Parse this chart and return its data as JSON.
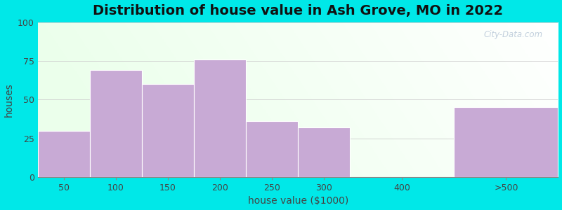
{
  "title": "Distribution of house value in Ash Grove, MO in 2022",
  "xlabel": "house value ($1000)",
  "ylabel": "houses",
  "bar_labels": [
    "50",
    "100",
    "150",
    "200",
    "250",
    "300",
    "400",
    ">500"
  ],
  "bar_heights": [
    30,
    69,
    60,
    76,
    36,
    32,
    0,
    45
  ],
  "bar_left_edges": [
    0,
    1,
    2,
    3,
    4,
    5,
    6,
    8
  ],
  "bar_widths": [
    1,
    1,
    1,
    1,
    1,
    1,
    2,
    2
  ],
  "tick_positions": [
    0.5,
    1.5,
    2.5,
    3.5,
    4.5,
    5.5,
    7.0,
    9.0
  ],
  "bar_color": "#c8aad5",
  "ylim": [
    0,
    100
  ],
  "xlim": [
    0,
    10
  ],
  "yticks": [
    0,
    25,
    50,
    75,
    100
  ],
  "outer_bg": "#00e8e8",
  "watermark": "City-Data.com",
  "title_fontsize": 14,
  "axis_label_fontsize": 10,
  "tick_fontsize": 9
}
